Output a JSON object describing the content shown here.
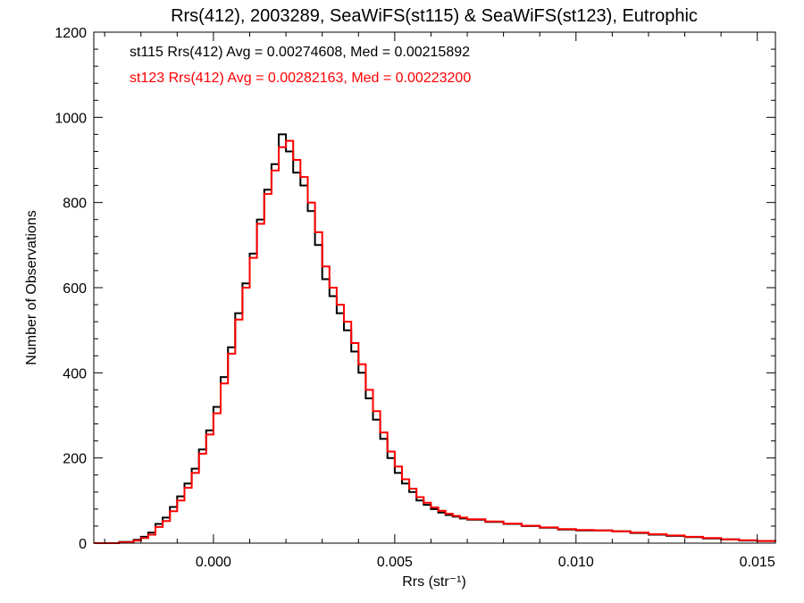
{
  "chart_data": {
    "type": "histogram",
    "title": "Rrs(412), 2003289, SeaWiFS(st115) & SeaWiFS(st123), Eutrophic",
    "xlabel": "Rrs (str⁻¹)",
    "ylabel": "Number of Observations",
    "xlim": [
      -0.0033,
      0.0155
    ],
    "ylim": [
      0,
      1200
    ],
    "x_ticks": [
      0.0,
      0.005,
      0.01,
      0.015
    ],
    "x_tick_labels": [
      "0.000",
      "0.005",
      "0.010",
      "0.015"
    ],
    "y_ticks": [
      0,
      200,
      400,
      600,
      800,
      1000,
      1200
    ],
    "y_tick_labels": [
      "0",
      "200",
      "400",
      "600",
      "800",
      "1000",
      "1200"
    ],
    "grid": false,
    "annotations": [
      {
        "text": "st115 Rrs(412) Avg = 0.00274608, Med = 0.00215892",
        "color": "#000000"
      },
      {
        "text": "st123 Rrs(412) Avg = 0.00282163, Med = 0.00223200",
        "color": "#ff0000"
      }
    ],
    "series": [
      {
        "color": "#000000",
        "points": [
          [
            -0.0033,
            0
          ],
          [
            -0.0026,
            3
          ],
          [
            -0.0022,
            8
          ],
          [
            -0.002,
            15
          ],
          [
            -0.0018,
            25
          ],
          [
            -0.0016,
            45
          ],
          [
            -0.0014,
            60
          ],
          [
            -0.0012,
            85
          ],
          [
            -0.001,
            110
          ],
          [
            -0.0008,
            140
          ],
          [
            -0.0006,
            175
          ],
          [
            -0.0004,
            220
          ],
          [
            -0.0002,
            265
          ],
          [
            0.0,
            320
          ],
          [
            0.0002,
            390
          ],
          [
            0.0004,
            460
          ],
          [
            0.0006,
            540
          ],
          [
            0.0008,
            610
          ],
          [
            0.001,
            680
          ],
          [
            0.0012,
            760
          ],
          [
            0.0014,
            830
          ],
          [
            0.0016,
            890
          ],
          [
            0.0018,
            960
          ],
          [
            0.002,
            920
          ],
          [
            0.0022,
            870
          ],
          [
            0.0024,
            840
          ],
          [
            0.0026,
            780
          ],
          [
            0.0028,
            700
          ],
          [
            0.003,
            620
          ],
          [
            0.0032,
            580
          ],
          [
            0.0034,
            540
          ],
          [
            0.0036,
            500
          ],
          [
            0.0038,
            450
          ],
          [
            0.004,
            400
          ],
          [
            0.0042,
            340
          ],
          [
            0.0044,
            290
          ],
          [
            0.0046,
            245
          ],
          [
            0.0048,
            200
          ],
          [
            0.005,
            165
          ],
          [
            0.0052,
            140
          ],
          [
            0.0054,
            120
          ],
          [
            0.0056,
            100
          ],
          [
            0.0058,
            90
          ],
          [
            0.006,
            80
          ],
          [
            0.0062,
            72
          ],
          [
            0.0064,
            66
          ],
          [
            0.0066,
            62
          ],
          [
            0.0068,
            58
          ],
          [
            0.007,
            55
          ],
          [
            0.0075,
            50
          ],
          [
            0.008,
            45
          ],
          [
            0.0085,
            40
          ],
          [
            0.009,
            36
          ],
          [
            0.0095,
            32
          ],
          [
            0.01,
            30
          ],
          [
            0.0105,
            30
          ],
          [
            0.011,
            28
          ],
          [
            0.0115,
            24
          ],
          [
            0.012,
            20
          ],
          [
            0.0125,
            17
          ],
          [
            0.013,
            14
          ],
          [
            0.0135,
            11
          ],
          [
            0.014,
            9
          ],
          [
            0.0145,
            6
          ],
          [
            0.015,
            5
          ],
          [
            0.0155,
            4
          ]
        ]
      },
      {
        "color": "#ff0000",
        "points": [
          [
            -0.0033,
            0
          ],
          [
            -0.0026,
            2
          ],
          [
            -0.0022,
            6
          ],
          [
            -0.002,
            12
          ],
          [
            -0.0018,
            20
          ],
          [
            -0.0016,
            38
          ],
          [
            -0.0014,
            52
          ],
          [
            -0.0012,
            75
          ],
          [
            -0.001,
            100
          ],
          [
            -0.0008,
            130
          ],
          [
            -0.0006,
            165
          ],
          [
            -0.0004,
            210
          ],
          [
            -0.0002,
            255
          ],
          [
            0.0,
            305
          ],
          [
            0.0002,
            375
          ],
          [
            0.0004,
            445
          ],
          [
            0.0006,
            525
          ],
          [
            0.0008,
            600
          ],
          [
            0.001,
            670
          ],
          [
            0.0012,
            750
          ],
          [
            0.0014,
            820
          ],
          [
            0.0016,
            875
          ],
          [
            0.0018,
            930
          ],
          [
            0.002,
            945
          ],
          [
            0.0022,
            900
          ],
          [
            0.0024,
            860
          ],
          [
            0.0026,
            800
          ],
          [
            0.0028,
            730
          ],
          [
            0.003,
            650
          ],
          [
            0.0032,
            600
          ],
          [
            0.0034,
            560
          ],
          [
            0.0036,
            520
          ],
          [
            0.0038,
            470
          ],
          [
            0.004,
            420
          ],
          [
            0.0042,
            360
          ],
          [
            0.0044,
            310
          ],
          [
            0.0046,
            260
          ],
          [
            0.0048,
            215
          ],
          [
            0.005,
            180
          ],
          [
            0.0052,
            150
          ],
          [
            0.0054,
            128
          ],
          [
            0.0056,
            108
          ],
          [
            0.0058,
            95
          ],
          [
            0.006,
            84
          ],
          [
            0.0062,
            76
          ],
          [
            0.0064,
            69
          ],
          [
            0.0066,
            64
          ],
          [
            0.0068,
            60
          ],
          [
            0.007,
            56
          ],
          [
            0.0075,
            51
          ],
          [
            0.008,
            46
          ],
          [
            0.0085,
            41
          ],
          [
            0.009,
            37
          ],
          [
            0.0095,
            33
          ],
          [
            0.01,
            31
          ],
          [
            0.0105,
            30
          ],
          [
            0.011,
            28
          ],
          [
            0.0115,
            25
          ],
          [
            0.012,
            21
          ],
          [
            0.0125,
            18
          ],
          [
            0.013,
            15
          ],
          [
            0.0135,
            12
          ],
          [
            0.014,
            9
          ],
          [
            0.0145,
            7
          ],
          [
            0.015,
            5
          ],
          [
            0.0155,
            4
          ]
        ]
      }
    ]
  }
}
